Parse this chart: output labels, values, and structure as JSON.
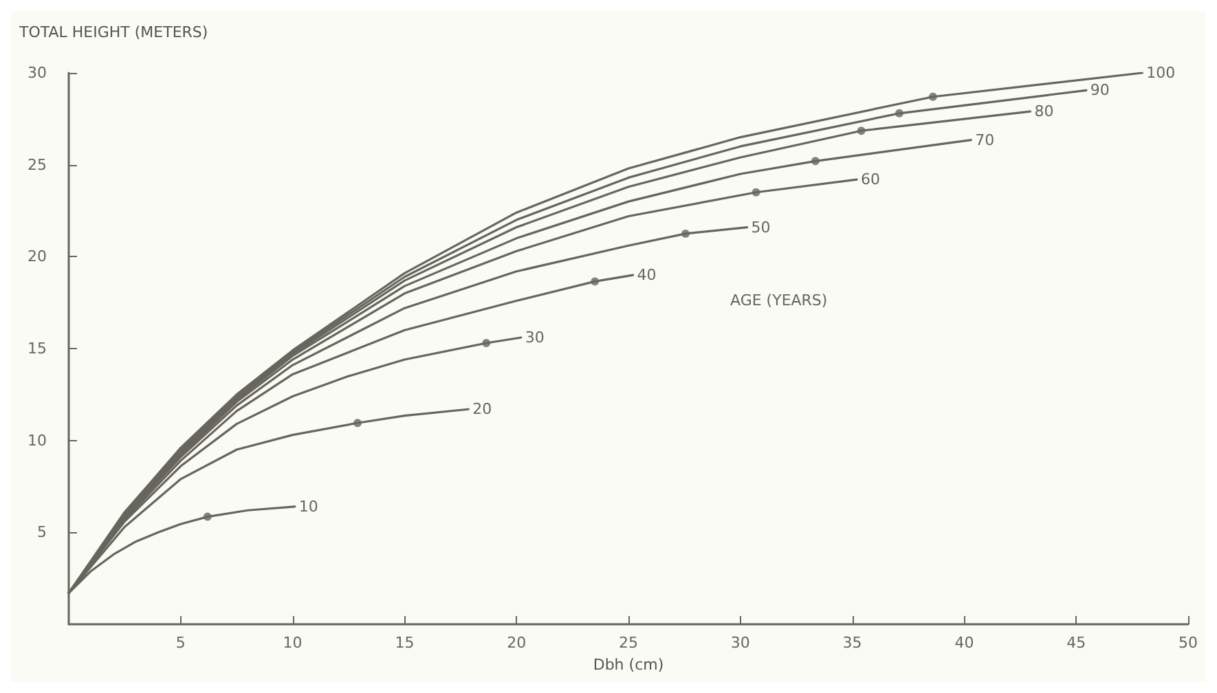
{
  "chart_data": {
    "type": "line",
    "xlabel": "Dbh (cm)",
    "ylabel": "TOTAL HEIGHT (METERS)",
    "annotations": [
      "AGE (YEARS)"
    ],
    "xlim": [
      0,
      50
    ],
    "xticks": [
      5,
      10,
      15,
      20,
      25,
      30,
      35,
      40,
      45,
      50
    ],
    "ylim": [
      0,
      30
    ],
    "yticks": [
      5,
      10,
      15,
      20,
      25,
      30
    ],
    "grid": false,
    "legend": false,
    "marker": "none",
    "line_style": "solid",
    "series": [
      {
        "name": "10",
        "color": "#66665c",
        "x": [
          0,
          1,
          2,
          3,
          4,
          5,
          6.2,
          8,
          10.1
        ],
        "values": [
          1.7,
          2.9,
          3.8,
          4.5,
          5.0,
          5.45,
          5.85,
          6.2,
          6.4
        ]
      },
      {
        "name": "20",
        "color": "#66665c",
        "x": [
          0,
          2.5,
          5,
          7.5,
          10,
          12.9,
          15,
          17.85
        ],
        "values": [
          1.7,
          5.3,
          7.9,
          9.5,
          10.3,
          10.95,
          11.35,
          11.7
        ]
      },
      {
        "name": "30",
        "color": "#66665c",
        "x": [
          0,
          2.5,
          5,
          7.5,
          10,
          12.5,
          15,
          18.65,
          20.2
        ],
        "values": [
          1.7,
          5.6,
          8.6,
          10.9,
          12.4,
          13.5,
          14.4,
          15.3,
          15.6
        ]
      },
      {
        "name": "40",
        "color": "#66665c",
        "x": [
          0,
          2.5,
          5,
          7.5,
          10,
          15,
          20,
          23.5,
          25.2
        ],
        "values": [
          1.7,
          5.7,
          8.9,
          11.6,
          13.6,
          16.0,
          17.6,
          18.65,
          19.0
        ]
      },
      {
        "name": "50",
        "color": "#66665c",
        "x": [
          0,
          2.5,
          5,
          7.5,
          10,
          15,
          20,
          25,
          27.55,
          30.3
        ],
        "values": [
          1.7,
          5.8,
          9.1,
          11.9,
          14.1,
          17.2,
          19.2,
          20.6,
          21.25,
          21.6
        ]
      },
      {
        "name": "60",
        "color": "#66665c",
        "x": [
          0,
          2.5,
          5,
          7.5,
          10,
          15,
          20,
          25,
          30.7,
          35.2
        ],
        "values": [
          1.7,
          5.9,
          9.2,
          12.1,
          14.4,
          18.0,
          20.3,
          22.2,
          23.5,
          24.2
        ]
      },
      {
        "name": "70",
        "color": "#66665c",
        "x": [
          0,
          2.5,
          5,
          7.5,
          10,
          15,
          20,
          25,
          30,
          33.35,
          40.3
        ],
        "values": [
          1.7,
          6.0,
          9.3,
          12.2,
          14.6,
          18.4,
          21.0,
          23.0,
          24.5,
          25.2,
          26.35
        ]
      },
      {
        "name": "80",
        "color": "#66665c",
        "x": [
          0,
          2.5,
          5,
          7.5,
          10,
          15,
          20,
          25,
          30,
          35.4,
          42.95
        ],
        "values": [
          1.7,
          6.0,
          9.4,
          12.3,
          14.7,
          18.7,
          21.6,
          23.8,
          25.4,
          26.85,
          27.9
        ]
      },
      {
        "name": "90",
        "color": "#66665c",
        "x": [
          0,
          2.5,
          5,
          7.5,
          10,
          15,
          20,
          25,
          30,
          37.1,
          45.45
        ],
        "values": [
          1.7,
          6.1,
          9.5,
          12.4,
          14.8,
          18.9,
          22.0,
          24.3,
          26.0,
          27.8,
          29.05
        ]
      },
      {
        "name": "100",
        "color": "#66665c",
        "x": [
          0,
          2.5,
          5,
          7.5,
          10,
          15,
          20,
          25,
          30,
          38.6,
          47.95
        ],
        "values": [
          1.7,
          6.1,
          9.6,
          12.5,
          14.9,
          19.1,
          22.4,
          24.8,
          26.5,
          28.7,
          30.0
        ]
      },
      {
        "type": "scatter",
        "marker": "circle",
        "color": "#66665c",
        "x": [
          6.2,
          12.9,
          18.65,
          23.5,
          27.55,
          30.7,
          33.35,
          35.4,
          37.1,
          38.6
        ],
        "values": [
          5.85,
          10.95,
          15.3,
          18.65,
          21.25,
          23.5,
          25.2,
          26.85,
          27.8,
          28.7
        ]
      }
    ]
  }
}
